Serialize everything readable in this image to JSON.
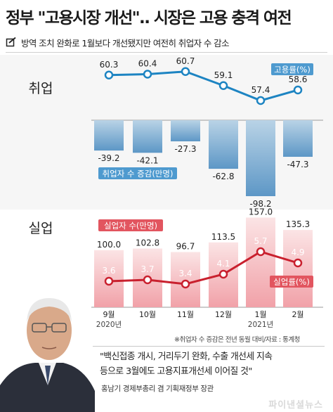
{
  "headline": "정부 \"고용시장 개선\".. 시장은 고용 충격 여전",
  "subtitle": "방역 조치 완화로 1월보다  개선됐지만 여전히 취업자 수 감소",
  "sections": {
    "employment": "취업",
    "unemployment": "실업"
  },
  "source": "※취업자 수 증감은 전년 동월 대비/자료 : 통계청",
  "quote": "\"백신접종 개시, 거리두기 완화, 수출 개선세 지속\n등으로 3월에도 고용지표개선세 이어질 것\"",
  "speaker": "홍남기 경제부총리 겸 기획재정부 장관",
  "logo": "파이낸셜뉴스",
  "colors": {
    "blue_line": "#1d84c2",
    "blue_bar_top": "#b9d3e6",
    "blue_bar_bottom": "#5d97c6",
    "blue_label_bg": "#4e9acf",
    "pink_bar_top": "#fbe4e5",
    "pink_bar_bottom": "#f1a1a8",
    "red_line": "#c9202e",
    "red_label_bg": "#e2555f"
  },
  "chart_data": [
    {
      "type": "line",
      "categories": [
        "9월",
        "10월",
        "11월",
        "12월",
        "1월",
        "2월"
      ],
      "year_labels": {
        "9월": "2020년",
        "1월": "2021년"
      },
      "series": [
        {
          "name": "고용률(%)",
          "values": [
            60.3,
            60.4,
            60.7,
            59.1,
            57.4,
            58.6
          ]
        }
      ]
    },
    {
      "type": "bar",
      "categories": [
        "9월",
        "10월",
        "11월",
        "12월",
        "1월",
        "2월"
      ],
      "series": [
        {
          "name": "취업자 수 증감(만명)",
          "values": [
            -39.2,
            -42.1,
            -27.3,
            -62.8,
            -98.2,
            -47.3
          ]
        }
      ]
    },
    {
      "type": "bar",
      "categories": [
        "9월",
        "10월",
        "11월",
        "12월",
        "1월",
        "2월"
      ],
      "series": [
        {
          "name": "실업자 수(만명)",
          "values": [
            100.0,
            102.8,
            96.7,
            113.5,
            157.0,
            135.3
          ]
        }
      ]
    },
    {
      "type": "line",
      "categories": [
        "9월",
        "10월",
        "11월",
        "12월",
        "1월",
        "2월"
      ],
      "series": [
        {
          "name": "실업률(%)",
          "values": [
            3.6,
            3.7,
            3.4,
            4.1,
            5.7,
            4.9
          ]
        }
      ]
    }
  ]
}
